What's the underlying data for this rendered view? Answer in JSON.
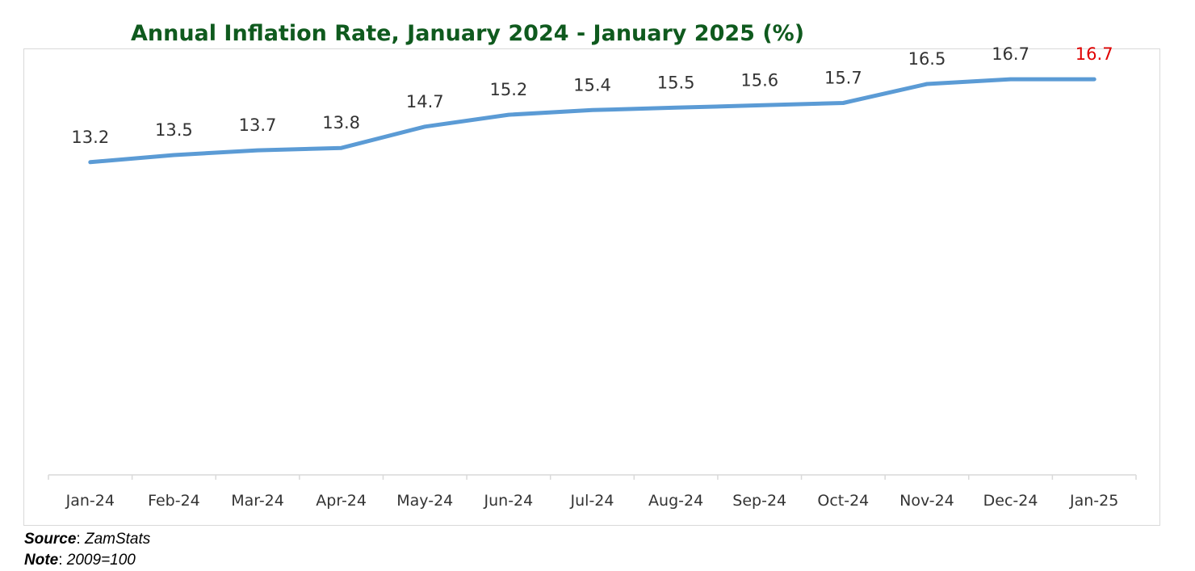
{
  "chart_data": {
    "type": "line",
    "title": "Annual Inflation Rate, January 2024 - January 2025 (%)",
    "categories": [
      "Jan-24",
      "Feb-24",
      "Mar-24",
      "Apr-24",
      "May-24",
      "Jun-24",
      "Jul-24",
      "Aug-24",
      "Sep-24",
      "Oct-24",
      "Nov-24",
      "Dec-24",
      "Jan-25"
    ],
    "values": [
      13.2,
      13.5,
      13.7,
      13.8,
      14.7,
      15.2,
      15.4,
      15.5,
      15.6,
      15.7,
      16.5,
      16.7,
      16.7
    ],
    "data_labels": [
      "13.2",
      "13.5",
      "13.7",
      "13.8",
      "14.7",
      "15.2",
      "15.4",
      "15.5",
      "15.6",
      "15.7",
      "16.5",
      "16.7",
      "16.7"
    ],
    "ylim": [
      0,
      18
    ],
    "grid": false,
    "legend": "none",
    "colors": {
      "line": "#5b9bd5",
      "title": "#0f5a1e",
      "label": "#333333",
      "highlight_label": "#e00000",
      "axis": "#d9d9d9"
    },
    "highlight_index": 12
  },
  "footnotes": {
    "source_label": "Source",
    "source_value": "ZamStats",
    "note_label": "Note",
    "note_value": "2009=100"
  }
}
